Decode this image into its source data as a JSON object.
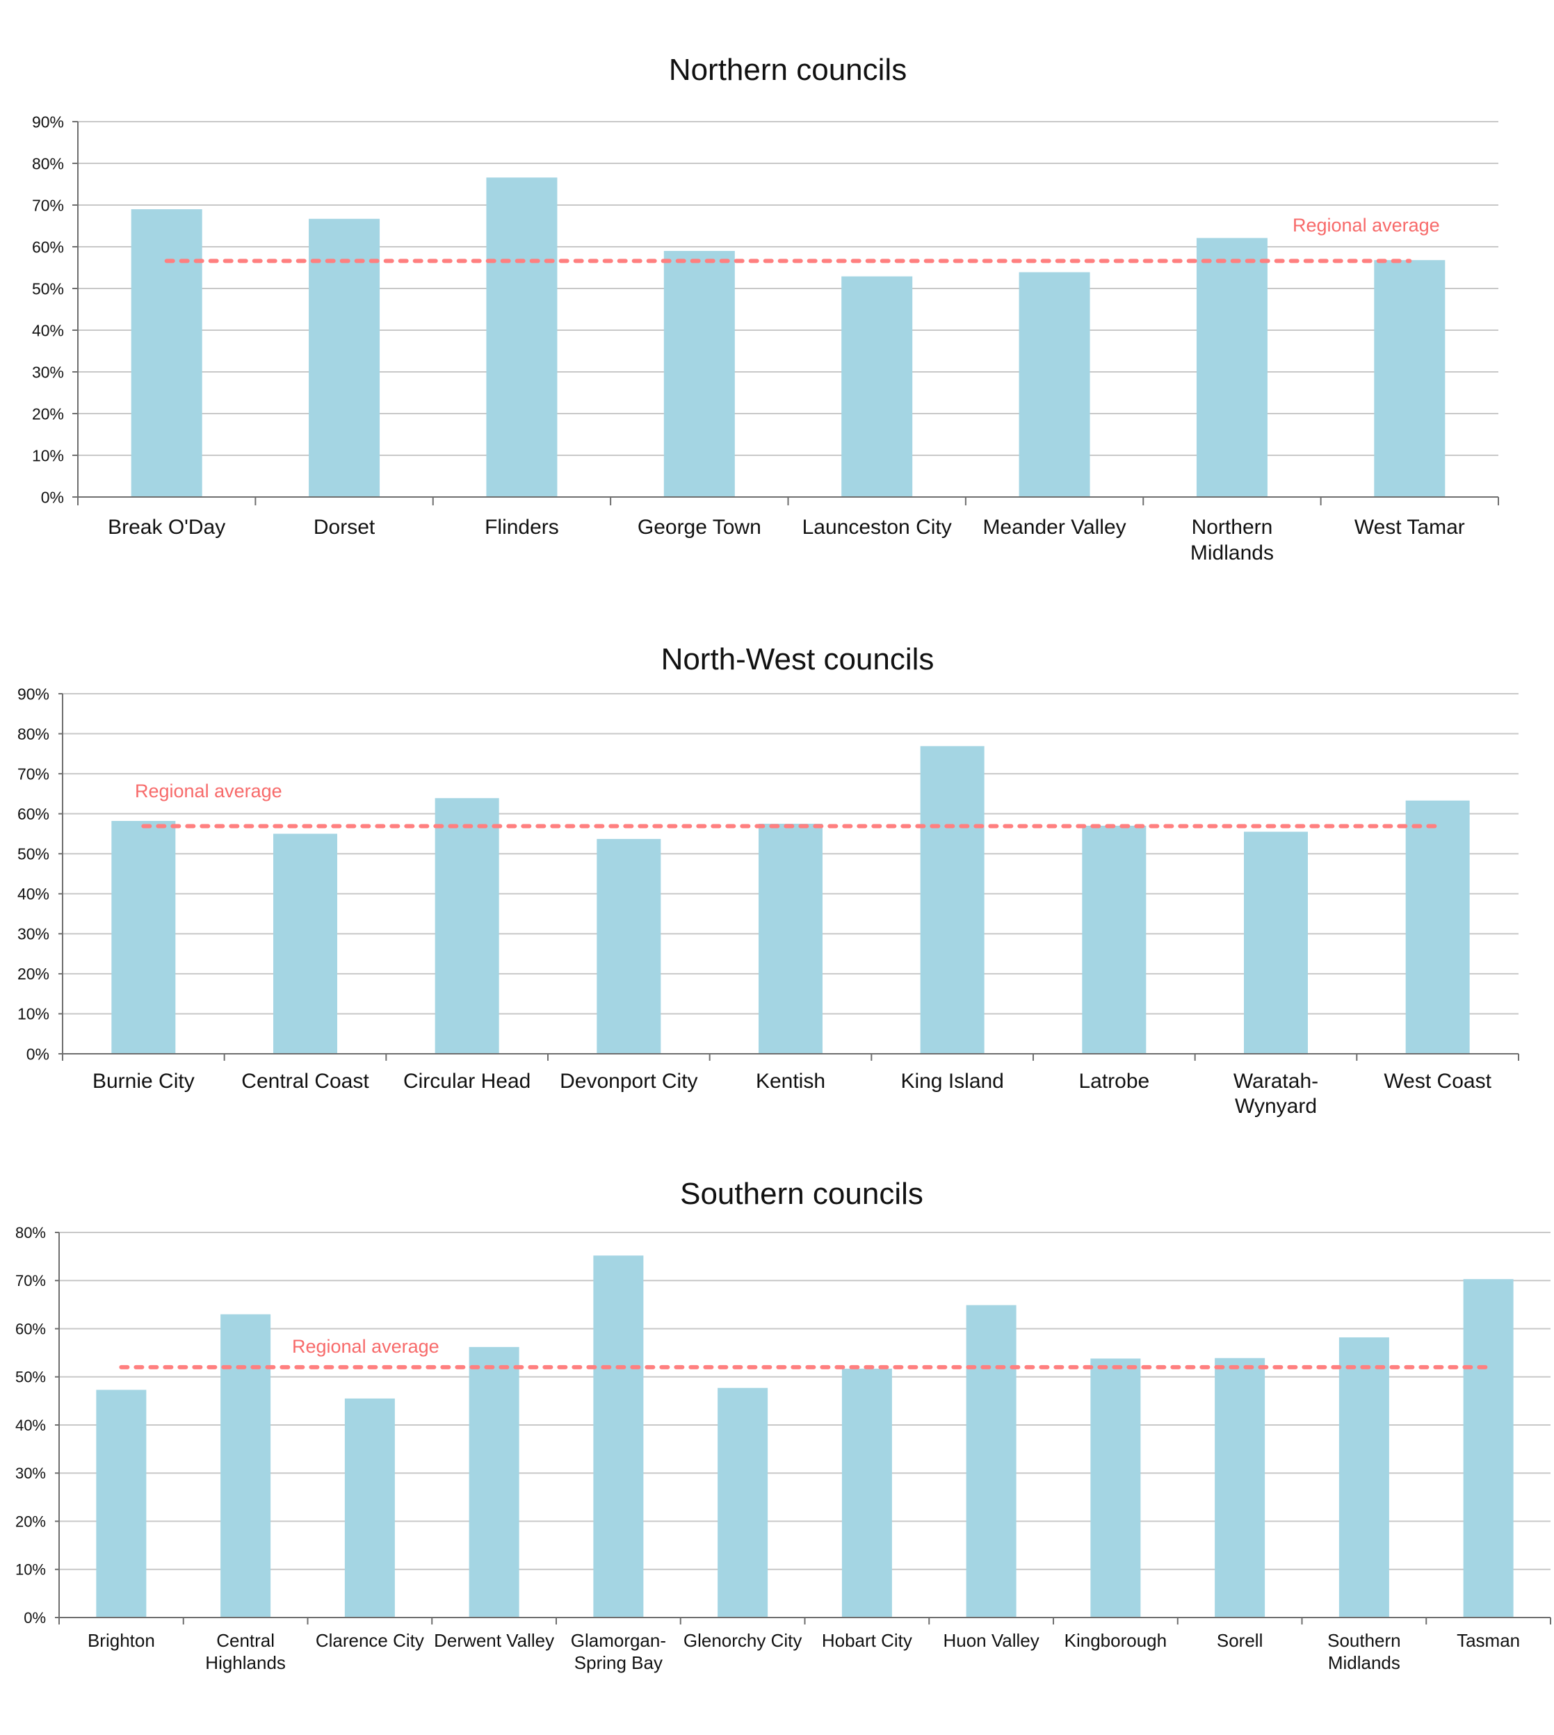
{
  "colors": {
    "bar": "#A4D5E3",
    "average_line": "#FF7F7F",
    "average_label": "#F76A6A"
  },
  "chart_data": [
    {
      "type": "bar",
      "title": "Northern councils",
      "xlabel": "",
      "ylabel": "",
      "ylim": [
        0,
        90
      ],
      "yticks": [
        "0%",
        "10%",
        "20%",
        "30%",
        "40%",
        "50%",
        "60%",
        "70%",
        "80%",
        "90%"
      ],
      "grid": true,
      "categories": [
        [
          "Break O'Day"
        ],
        [
          "Dorset"
        ],
        [
          "Flinders"
        ],
        [
          "George Town"
        ],
        [
          "Launceston City"
        ],
        [
          "Meander Valley"
        ],
        [
          "Northern",
          "Midlands"
        ],
        [
          "West Tamar"
        ]
      ],
      "values": [
        69.0,
        66.7,
        76.6,
        59.0,
        52.9,
        53.9,
        62.1,
        56.8
      ],
      "average": {
        "label": "Regional average",
        "value": 56.6
      }
    },
    {
      "type": "bar",
      "title": "North-West councils",
      "xlabel": "",
      "ylabel": "",
      "ylim": [
        0,
        90
      ],
      "yticks": [
        "0%",
        "10%",
        "20%",
        "30%",
        "40%",
        "50%",
        "60%",
        "70%",
        "80%",
        "90%"
      ],
      "grid": true,
      "categories": [
        [
          "Burnie City"
        ],
        [
          "Central Coast"
        ],
        [
          "Circular Head"
        ],
        [
          "Devonport City"
        ],
        [
          "Kentish"
        ],
        [
          "King Island"
        ],
        [
          "Latrobe"
        ],
        [
          "Waratah-",
          "Wynyard"
        ],
        [
          "West Coast"
        ]
      ],
      "values": [
        58.2,
        55.0,
        63.9,
        53.7,
        57.5,
        76.9,
        57.0,
        55.5,
        63.3
      ],
      "average": {
        "label": "Regional average",
        "value": 56.9
      }
    },
    {
      "type": "bar",
      "title": "Southern councils",
      "xlabel": "",
      "ylabel": "",
      "ylim": [
        0,
        80
      ],
      "yticks": [
        "0%",
        "10%",
        "20%",
        "30%",
        "40%",
        "50%",
        "60%",
        "70%",
        "80%"
      ],
      "grid": true,
      "categories": [
        [
          "Brighton"
        ],
        [
          "Central",
          "Highlands"
        ],
        [
          "Clarence City"
        ],
        [
          "Derwent Valley"
        ],
        [
          "Glamorgan-",
          "Spring Bay"
        ],
        [
          "Glenorchy City"
        ],
        [
          "Hobart City"
        ],
        [
          "Huon Valley"
        ],
        [
          "Kingborough"
        ],
        [
          "Sorell"
        ],
        [
          "Southern",
          "Midlands"
        ],
        [
          "Tasman"
        ]
      ],
      "values": [
        47.3,
        63.0,
        45.5,
        56.2,
        75.2,
        47.7,
        51.7,
        64.9,
        53.8,
        53.9,
        58.2,
        70.3
      ],
      "average": {
        "label": "Regional average",
        "value": 52.0
      }
    }
  ]
}
